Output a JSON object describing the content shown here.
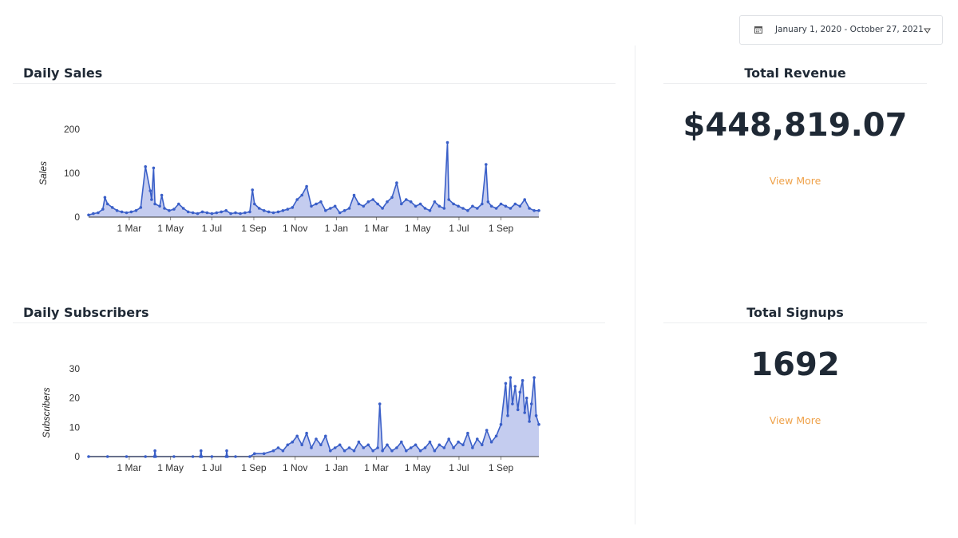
{
  "date_range": {
    "label": "January 1, 2020 - October 27, 2021",
    "icon": "calendar-icon",
    "caret_icon": "caret-down-icon"
  },
  "sales_section": {
    "title": "Daily Sales"
  },
  "subscribers_section": {
    "title": "Daily Subscribers"
  },
  "revenue": {
    "title": "Total Revenue",
    "value": "$448,819.07",
    "link": "View More"
  },
  "signups": {
    "title": "Total Signups",
    "value": "1692",
    "link": "View More"
  },
  "colors": {
    "line": "#3a5fc8",
    "fill": "#c4ccef",
    "link": "#efa24a"
  },
  "chart_data": [
    {
      "type": "area",
      "ylabel": "Sales",
      "ylim": [
        0,
        200
      ],
      "yticks": [
        0,
        100,
        200
      ],
      "xlim": [
        "2020-01-01",
        "2021-10-27"
      ],
      "xticks": [
        {
          "date": "2020-03-01",
          "label": "1 Mar"
        },
        {
          "date": "2020-05-01",
          "label": "1 May"
        },
        {
          "date": "2020-07-01",
          "label": "1 Jul"
        },
        {
          "date": "2020-09-01",
          "label": "1 Sep"
        },
        {
          "date": "2020-11-01",
          "label": "1 Nov"
        },
        {
          "date": "2021-01-01",
          "label": "1 Jan"
        },
        {
          "date": "2021-03-01",
          "label": "1 Mar"
        },
        {
          "date": "2021-05-01",
          "label": "1 May"
        },
        {
          "date": "2021-07-01",
          "label": "1 Jul"
        },
        {
          "date": "2021-09-01",
          "label": "1 Sep"
        }
      ],
      "x": [
        "2020-01-01",
        "2020-01-08",
        "2020-01-15",
        "2020-01-22",
        "2020-01-25",
        "2020-01-29",
        "2020-02-05",
        "2020-02-12",
        "2020-02-19",
        "2020-02-26",
        "2020-03-04",
        "2020-03-11",
        "2020-03-18",
        "2020-03-25",
        "2020-04-01",
        "2020-04-03",
        "2020-04-06",
        "2020-04-08",
        "2020-04-15",
        "2020-04-18",
        "2020-04-22",
        "2020-04-29",
        "2020-05-06",
        "2020-05-13",
        "2020-05-20",
        "2020-05-27",
        "2020-06-03",
        "2020-06-10",
        "2020-06-17",
        "2020-06-24",
        "2020-07-01",
        "2020-07-08",
        "2020-07-15",
        "2020-07-22",
        "2020-07-29",
        "2020-08-05",
        "2020-08-12",
        "2020-08-19",
        "2020-08-26",
        "2020-08-30",
        "2020-09-02",
        "2020-09-09",
        "2020-09-16",
        "2020-09-23",
        "2020-09-30",
        "2020-10-07",
        "2020-10-14",
        "2020-10-21",
        "2020-10-28",
        "2020-11-04",
        "2020-11-11",
        "2020-11-18",
        "2020-11-25",
        "2020-12-02",
        "2020-12-09",
        "2020-12-16",
        "2020-12-23",
        "2020-12-30",
        "2021-01-06",
        "2021-01-13",
        "2021-01-20",
        "2021-01-27",
        "2021-02-03",
        "2021-02-10",
        "2021-02-17",
        "2021-02-24",
        "2021-03-03",
        "2021-03-10",
        "2021-03-17",
        "2021-03-24",
        "2021-03-31",
        "2021-04-07",
        "2021-04-14",
        "2021-04-21",
        "2021-04-28",
        "2021-05-05",
        "2021-05-12",
        "2021-05-19",
        "2021-05-26",
        "2021-06-02",
        "2021-06-09",
        "2021-06-14",
        "2021-06-16",
        "2021-06-23",
        "2021-06-30",
        "2021-07-07",
        "2021-07-14",
        "2021-07-21",
        "2021-07-28",
        "2021-08-04",
        "2021-08-10",
        "2021-08-13",
        "2021-08-18",
        "2021-08-25",
        "2021-09-01",
        "2021-09-08",
        "2021-09-15",
        "2021-09-22",
        "2021-09-29",
        "2021-10-06",
        "2021-10-13",
        "2021-10-20",
        "2021-10-27"
      ],
      "values": [
        5,
        8,
        10,
        18,
        45,
        30,
        22,
        15,
        12,
        10,
        12,
        15,
        22,
        115,
        60,
        40,
        112,
        30,
        25,
        50,
        20,
        15,
        18,
        30,
        20,
        12,
        10,
        8,
        12,
        10,
        8,
        10,
        12,
        15,
        8,
        10,
        8,
        10,
        12,
        62,
        30,
        20,
        15,
        12,
        10,
        12,
        15,
        18,
        22,
        40,
        50,
        70,
        25,
        30,
        35,
        15,
        20,
        25,
        10,
        15,
        20,
        50,
        30,
        25,
        35,
        40,
        30,
        20,
        35,
        45,
        78,
        30,
        40,
        35,
        25,
        30,
        20,
        15,
        35,
        25,
        20,
        170,
        40,
        30,
        25,
        20,
        15,
        25,
        20,
        30,
        120,
        35,
        25,
        20,
        30,
        25,
        20,
        30,
        25,
        40,
        20,
        15,
        15
      ]
    },
    {
      "type": "area",
      "ylabel": "Subscribers",
      "ylim": [
        0,
        30
      ],
      "yticks": [
        0,
        10,
        20,
        30
      ],
      "xlim": [
        "2020-01-01",
        "2021-10-27"
      ],
      "xticks": [
        {
          "date": "2020-03-01",
          "label": "1 Mar"
        },
        {
          "date": "2020-05-01",
          "label": "1 May"
        },
        {
          "date": "2020-07-01",
          "label": "1 Jul"
        },
        {
          "date": "2020-09-01",
          "label": "1 Sep"
        },
        {
          "date": "2020-11-01",
          "label": "1 Nov"
        },
        {
          "date": "2021-01-01",
          "label": "1 Jan"
        },
        {
          "date": "2021-03-01",
          "label": "1 Mar"
        },
        {
          "date": "2021-05-01",
          "label": "1 May"
        },
        {
          "date": "2021-07-01",
          "label": "1 Jul"
        },
        {
          "date": "2021-09-01",
          "label": "1 Sep"
        }
      ],
      "x": [
        "2020-01-01",
        "2020-01-29",
        "2020-02-26",
        "2020-03-25",
        "2020-04-07",
        "2020-04-08",
        "2020-04-09",
        "2020-05-06",
        "2020-06-03",
        "2020-06-14",
        "2020-06-15",
        "2020-06-16",
        "2020-07-01",
        "2020-07-22",
        "2020-07-23",
        "2020-07-24",
        "2020-08-05",
        "2020-08-26",
        "2020-09-02",
        "2020-09-16",
        "2020-09-30",
        "2020-10-07",
        "2020-10-14",
        "2020-10-21",
        "2020-10-28",
        "2020-11-04",
        "2020-11-11",
        "2020-11-18",
        "2020-11-25",
        "2020-12-02",
        "2020-12-09",
        "2020-12-16",
        "2020-12-23",
        "2020-12-30",
        "2021-01-06",
        "2021-01-13",
        "2021-01-20",
        "2021-01-27",
        "2021-02-03",
        "2021-02-10",
        "2021-02-17",
        "2021-02-24",
        "2021-03-03",
        "2021-03-06",
        "2021-03-10",
        "2021-03-17",
        "2021-03-24",
        "2021-03-31",
        "2021-04-07",
        "2021-04-14",
        "2021-04-21",
        "2021-04-28",
        "2021-05-05",
        "2021-05-12",
        "2021-05-19",
        "2021-05-26",
        "2021-06-02",
        "2021-06-09",
        "2021-06-16",
        "2021-06-23",
        "2021-06-30",
        "2021-07-07",
        "2021-07-14",
        "2021-07-21",
        "2021-07-28",
        "2021-08-04",
        "2021-08-11",
        "2021-08-18",
        "2021-08-25",
        "2021-09-01",
        "2021-09-08",
        "2021-09-11",
        "2021-09-15",
        "2021-09-18",
        "2021-09-22",
        "2021-09-26",
        "2021-09-29",
        "2021-10-03",
        "2021-10-06",
        "2021-10-09",
        "2021-10-13",
        "2021-10-16",
        "2021-10-20",
        "2021-10-23",
        "2021-10-27"
      ],
      "values": [
        0,
        0,
        0,
        0,
        0,
        2,
        0,
        0,
        0,
        0,
        2,
        0,
        0,
        0,
        2,
        0,
        0,
        0,
        1,
        1,
        2,
        3,
        2,
        4,
        5,
        7,
        4,
        8,
        3,
        6,
        4,
        7,
        2,
        3,
        4,
        2,
        3,
        2,
        5,
        3,
        4,
        2,
        3,
        18,
        2,
        4,
        2,
        3,
        5,
        2,
        3,
        4,
        2,
        3,
        5,
        2,
        4,
        3,
        6,
        3,
        5,
        4,
        8,
        3,
        6,
        4,
        9,
        5,
        7,
        11,
        25,
        14,
        27,
        18,
        24,
        16,
        22,
        26,
        15,
        20,
        12,
        18,
        27,
        14,
        11
      ]
    }
  ]
}
